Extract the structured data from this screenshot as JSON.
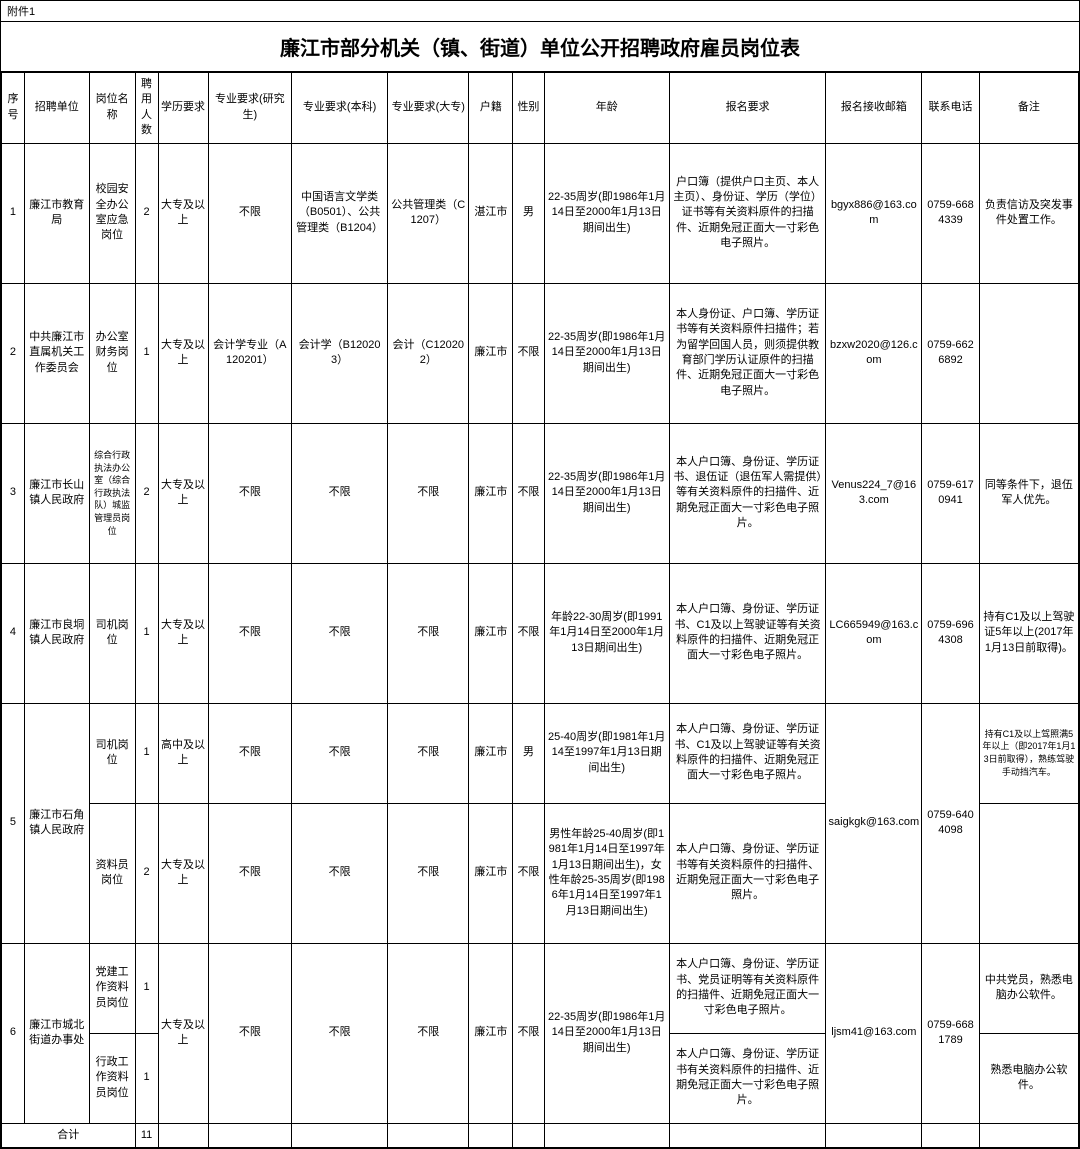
{
  "attachment_label": "附件1",
  "title": "廉江市部分机关（镇、街道）单位公开招聘政府雇员岗位表",
  "headers": {
    "seq": "序号",
    "unit": "招聘单位",
    "position": "岗位名称",
    "count": "聘用人数",
    "edu": "学历要求",
    "major_g": "专业要求(研究生)",
    "major_b": "专业要求(本科)",
    "major_c": "专业要求(大专)",
    "residence": "户籍",
    "gender": "性别",
    "age": "年龄",
    "apply": "报名要求",
    "email": "报名接收邮箱",
    "phone": "联系电话",
    "remark": "备注"
  },
  "rows": [
    {
      "seq": "1",
      "unit": "廉江市教育局",
      "position": "校园安全办公室应急岗位",
      "count": "2",
      "edu": "大专及以上",
      "major_g": "不限",
      "major_b": "中国语言文学类（B0501）、公共管理类（B1204）",
      "major_c": "公共管理类（C1207）",
      "residence": "湛江市",
      "gender": "男",
      "age": "22-35周岁(即1986年1月14日至2000年1月13日期间出生)",
      "apply": "户口簿（提供户口主页、本人主页）、身份证、学历（学位）证书等有关资料原件的扫描件、近期免冠正面大一寸彩色电子照片。",
      "email": "bgyx886@163.com",
      "phone": "0759-6684339",
      "remark": "负责信访及突发事件处置工作。"
    },
    {
      "seq": "2",
      "unit": "中共廉江市直属机关工作委员会",
      "position": "办公室财务岗位",
      "count": "1",
      "edu": "大专及以上",
      "major_g": "会计学专业（A120201）",
      "major_b": "会计学（B120203）",
      "major_c": "会计（C120202）",
      "residence": "廉江市",
      "gender": "不限",
      "age": "22-35周岁(即1986年1月14日至2000年1月13日期间出生)",
      "apply": "本人身份证、户口簿、学历证书等有关资料原件扫描件；若为留学回国人员，则须提供教育部门学历认证原件的扫描件、近期免冠正面大一寸彩色电子照片。",
      "email": "bzxw2020@126.com",
      "phone": "0759-6626892",
      "remark": ""
    },
    {
      "seq": "3",
      "unit": "廉江市长山镇人民政府",
      "position": "综合行政执法办公室（综合行政执法队）城监管理员岗位",
      "position_small": true,
      "count": "2",
      "edu": "大专及以上",
      "major_g": "不限",
      "major_b": "不限",
      "major_c": "不限",
      "residence": "廉江市",
      "gender": "不限",
      "age": "22-35周岁(即1986年1月14日至2000年1月13日期间出生)",
      "apply": "本人户口簿、身份证、学历证书、退伍证（退伍军人需提供）等有关资料原件的扫描件、近期免冠正面大一寸彩色电子照片。",
      "email": "Venus224_7@163.com",
      "phone": "0759-6170941",
      "remark": "同等条件下，退伍军人优先。"
    },
    {
      "seq": "4",
      "unit": "廉江市良垌镇人民政府",
      "position": "司机岗位",
      "count": "1",
      "edu": "大专及以上",
      "major_g": "不限",
      "major_b": "不限",
      "major_c": "不限",
      "residence": "廉江市",
      "gender": "不限",
      "age": "年龄22-30周岁(即1991年1月14日至2000年1月13日期间出生)",
      "apply": "本人户口簿、身份证、学历证书、C1及以上驾驶证等有关资料原件的扫描件、近期免冠正面大一寸彩色电子照片。",
      "email": "LC665949@163.com",
      "phone": "0759-6964308",
      "remark": "持有C1及以上驾驶证5年以上(2017年1月13日前取得)。"
    }
  ],
  "row5": {
    "seq": "5",
    "unit": "廉江市石角镇人民政府",
    "email": "saigkgk@163.com",
    "phone": "0759-6404098",
    "sub1": {
      "position": "司机岗位",
      "count": "1",
      "edu": "高中及以上",
      "major_g": "不限",
      "major_b": "不限",
      "major_c": "不限",
      "residence": "廉江市",
      "gender": "男",
      "age": "25-40周岁(即1981年1月14至1997年1月13日期间出生)",
      "apply": "本人户口簿、身份证、学历证书、C1及以上驾驶证等有关资料原件的扫描件、近期免冠正面大一寸彩色电子照片。",
      "remark": "持有C1及以上驾照满5年以上（即2017年1月13日前取得），熟练驾驶手动挡汽车。"
    },
    "sub2": {
      "position": "资料员岗位",
      "count": "2",
      "edu": "大专及以上",
      "major_g": "不限",
      "major_b": "不限",
      "major_c": "不限",
      "residence": "廉江市",
      "gender": "不限",
      "age": "男性年龄25-40周岁(即1981年1月14日至1997年1月13日期间出生)，女性年龄25-35周岁(即1986年1月14日至1997年1月13日期间出生)",
      "apply": "本人户口簿、身份证、学历证书等有关资料原件的扫描件、近期免冠正面大一寸彩色电子照片。",
      "remark": ""
    }
  },
  "row6": {
    "seq": "6",
    "unit": "廉江市城北街道办事处",
    "edu": "大专及以上",
    "major_g": "不限",
    "major_b": "不限",
    "major_c": "不限",
    "residence": "廉江市",
    "gender": "不限",
    "age": "22-35周岁(即1986年1月14日至2000年1月13日期间出生)",
    "email": "ljsm41@163.com",
    "phone": "0759-6681789",
    "sub1": {
      "position": "党建工作资料员岗位",
      "count": "1",
      "apply": "本人户口簿、身份证、学历证书、党员证明等有关资料原件的扫描件、近期免冠正面大一寸彩色电子照片。",
      "remark": "中共党员，熟悉电脑办公软件。"
    },
    "sub2": {
      "position": "行政工作资料员岗位",
      "count": "1",
      "apply": "本人户口簿、身份证、学历证书有关资料原件的扫描件、近期免冠正面大一寸彩色电子照片。",
      "remark": "熟悉电脑办公软件。"
    }
  },
  "total": {
    "label": "合计",
    "count": "11"
  }
}
